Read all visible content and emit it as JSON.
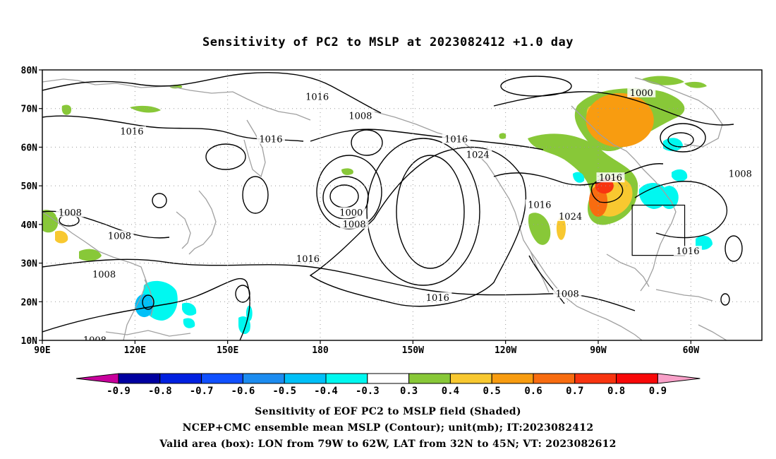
{
  "title": "Sensitivity of PC2 to MSLP at 2023082412 +1.0 day",
  "map": {
    "lat_ticks": [
      "80N",
      "70N",
      "60N",
      "50N",
      "40N",
      "30N",
      "20N",
      "10N"
    ],
    "lon_ticks": [
      "90E",
      "120E",
      "150E",
      "180",
      "150W",
      "120W",
      "90W",
      "60W"
    ],
    "lat_range": [
      10,
      80
    ],
    "lon_range_east": [
      90,
      323
    ],
    "grid": true,
    "colors": {
      "land_outline": "#a0a0a0",
      "contour": "#000000",
      "grid": "#999999"
    },
    "contour_labels": [
      {
        "text": "1016",
        "lon": 179,
        "lat": 73
      },
      {
        "text": "1016",
        "lon": 119,
        "lat": 64
      },
      {
        "text": "1016",
        "lon": 164,
        "lat": 62
      },
      {
        "text": "1008",
        "lon": 193,
        "lat": 68
      },
      {
        "text": "1016",
        "lon": 224,
        "lat": 62
      },
      {
        "text": "1024",
        "lon": 231,
        "lat": 58
      },
      {
        "text": "1000",
        "lon": 284,
        "lat": 74
      },
      {
        "text": "1008",
        "lon": 99,
        "lat": 43
      },
      {
        "text": "1008",
        "lon": 115,
        "lat": 37
      },
      {
        "text": "1016",
        "lon": 176,
        "lat": 31
      },
      {
        "text": "1000",
        "lon": 190,
        "lat": 43
      },
      {
        "text": "1008",
        "lon": 191,
        "lat": 40
      },
      {
        "text": "1016",
        "lon": 251,
        "lat": 45
      },
      {
        "text": "1024",
        "lon": 261,
        "lat": 42
      },
      {
        "text": "1016",
        "lon": 274,
        "lat": 52
      },
      {
        "text": "1008",
        "lon": 316,
        "lat": 53
      },
      {
        "text": "1016",
        "lon": 299,
        "lat": 33
      },
      {
        "text": "1016",
        "lon": 218,
        "lat": 21
      },
      {
        "text": "1008",
        "lon": 110,
        "lat": 27
      },
      {
        "text": "1008",
        "lon": 260,
        "lat": 22
      },
      {
        "text": "1008",
        "lon": 107,
        "lat": 10
      }
    ],
    "box": {
      "lon_w": -79,
      "lon_e": -62,
      "lat_s": 32,
      "lat_n": 45
    },
    "sensitivity_regions": [
      {
        "level": 0.5,
        "lon": 277,
        "lat": 67,
        "rx": 11,
        "ry": 7
      },
      {
        "level": 0.6,
        "lon": 270,
        "lat": 46,
        "rx": 3,
        "ry": 4
      },
      {
        "level": 0.7,
        "lon": 272,
        "lat": 50,
        "rx": 3,
        "ry": 2
      },
      {
        "level": -0.4,
        "lon": 293,
        "lat": 47,
        "rx": 3,
        "ry": 3
      },
      {
        "level": -0.5,
        "lon": 123,
        "lat": 19,
        "rx": 3,
        "ry": 3
      },
      {
        "level": -0.4,
        "lon": 157,
        "lat": 17,
        "rx": 1,
        "ry": 2
      },
      {
        "level": 0.4,
        "lon": 258,
        "lat": 39,
        "rx": 1.5,
        "ry": 3
      }
    ]
  },
  "colorbar": {
    "labels": [
      "-0.9",
      "-0.8",
      "-0.7",
      "-0.6",
      "-0.5",
      "-0.4",
      "-0.3",
      "0.3",
      "0.4",
      "0.5",
      "0.6",
      "0.7",
      "0.8",
      "0.9"
    ],
    "colors": [
      "#0000a0",
      "#0020e0",
      "#1050ff",
      "#1c8cf0",
      "#00c0f8",
      "#00f8f0",
      "#ffffff",
      "#88c838",
      "#f8c830",
      "#f89c10",
      "#f86c10",
      "#f83410",
      "#f80808"
    ],
    "low_triangle_color": "#c8009c",
    "high_triangle_color": "#f8a0c8"
  },
  "captions": [
    "Sensitivity of EOF PC2 to MSLP field (Shaded)",
    "NCEP+CMC ensemble mean MSLP (Contour); unit(mb); IT:2023082412",
    "Valid area (box): LON from 79W to 62W, LAT from 32N to 45N; VT: 2023082612"
  ]
}
